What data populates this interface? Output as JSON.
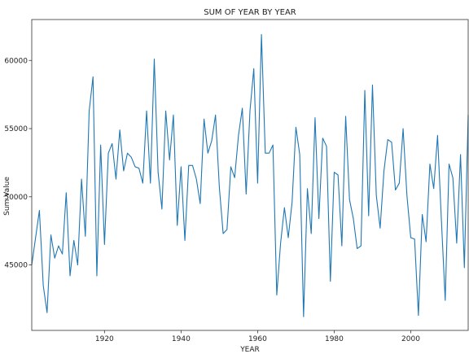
{
  "chart_data": {
    "type": "line",
    "title": "SUM OF YEAR BY YEAR",
    "xlabel": "YEAR",
    "ylabel": "Sum Value",
    "xlim": [
      1901,
      2015
    ],
    "ylim": [
      40200,
      63000
    ],
    "x_ticks": [
      1920,
      1940,
      1960,
      1980,
      2000
    ],
    "y_ticks": [
      45000,
      50000,
      55000,
      60000
    ],
    "x_tick_labels": [
      "1920",
      "1940",
      "1960",
      "1980",
      "2000"
    ],
    "y_tick_labels": [
      "45000",
      "50000",
      "55000",
      "60000"
    ],
    "grid": false,
    "legend": "none",
    "line_color": "#1f77b4",
    "x": [
      1901,
      1902,
      1903,
      1904,
      1905,
      1906,
      1907,
      1908,
      1909,
      1910,
      1911,
      1912,
      1913,
      1914,
      1915,
      1916,
      1917,
      1918,
      1919,
      1920,
      1921,
      1922,
      1923,
      1924,
      1925,
      1926,
      1927,
      1928,
      1929,
      1930,
      1931,
      1932,
      1933,
      1934,
      1935,
      1936,
      1937,
      1938,
      1939,
      1940,
      1941,
      1942,
      1943,
      1944,
      1945,
      1946,
      1947,
      1948,
      1949,
      1950,
      1951,
      1952,
      1953,
      1954,
      1955,
      1956,
      1957,
      1958,
      1959,
      1960,
      1961,
      1962,
      1963,
      1964,
      1965,
      1966,
      1967,
      1968,
      1969,
      1970,
      1971,
      1972,
      1973,
      1974,
      1975,
      1976,
      1977,
      1978,
      1979,
      1980,
      1981,
      1982,
      1983,
      1984,
      1985,
      1986,
      1987,
      1988,
      1989,
      1990,
      1991,
      1992,
      1993,
      1994,
      1995,
      1996,
      1997,
      1998,
      1999,
      2000,
      2001,
      2002,
      2003,
      2004,
      2005,
      2006,
      2007,
      2008,
      2009,
      2010,
      2011,
      2012,
      2013,
      2014,
      2015
    ],
    "series": [
      {
        "values": [
          45000,
          47000,
          49000,
          43500,
          41500,
          47200,
          45500,
          46400,
          45800,
          50300,
          44200,
          46800,
          45000,
          51300,
          47100,
          56300,
          58800,
          44200,
          53800,
          46500,
          53200,
          53900,
          51300,
          54900,
          51900,
          53200,
          52900,
          52200,
          52100,
          51000,
          56300,
          51000,
          60100,
          51800,
          49100,
          56300,
          52700,
          56000,
          47900,
          52200,
          46800,
          52300,
          52300,
          51300,
          49500,
          55700,
          53200,
          54100,
          56000,
          50700,
          47300,
          47600,
          52200,
          51400,
          54500,
          56500,
          50200,
          56300,
          59400,
          51000,
          61900,
          53200,
          53200,
          53800,
          42800,
          46600,
          49200,
          47000,
          49600,
          55100,
          53100,
          41200,
          50600,
          47300,
          55800,
          48400,
          54300,
          53700,
          43800,
          51800,
          51600,
          46400,
          55900,
          49800,
          48400,
          46200,
          46400,
          57800,
          48600,
          58200,
          50100,
          47700,
          51900,
          54200,
          54000,
          50500,
          51000,
          55000,
          50100,
          47000,
          46900,
          41300,
          48700,
          46700,
          52400,
          50600,
          54500,
          48300,
          42400,
          52400,
          51400,
          46600,
          53100,
          44800,
          56000
        ]
      }
    ]
  }
}
